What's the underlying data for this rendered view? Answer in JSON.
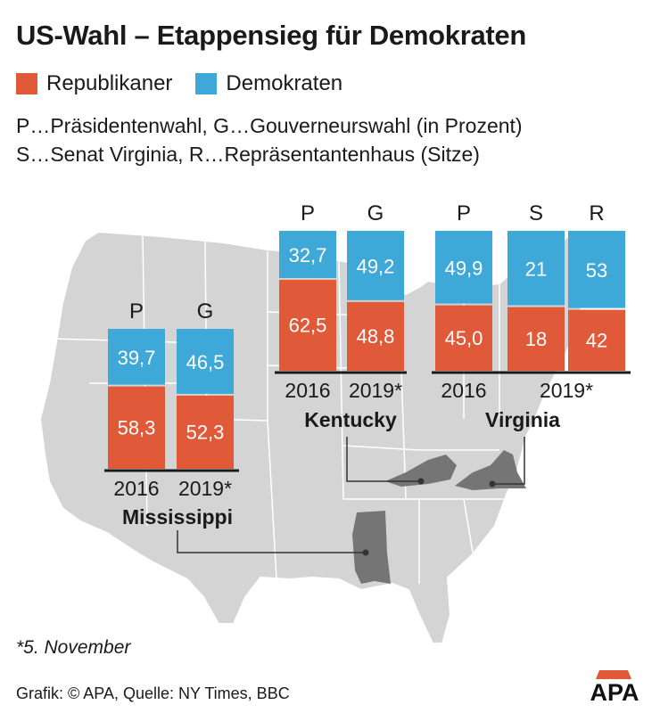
{
  "title": "US-Wahl – Etappensieg für Demokraten",
  "legend": {
    "republicans": {
      "label": "Republikaner",
      "color": "#e05a3a"
    },
    "democrats": {
      "label": "Demokraten",
      "color": "#3ea9d8"
    }
  },
  "notes": {
    "line1": "P…Präsidentenwahl, G…Gouverneurswahl (in Prozent)",
    "line2": "S…Senat Virginia, R…Repräsentantenhaus (Sitze)"
  },
  "footnote": "*5. November",
  "source": "Grafik: © APA, Quelle: NY Times, BBC",
  "logo_text": "APA",
  "chart_data": {
    "type": "bar",
    "stacked": true,
    "normalized": true,
    "groups": [
      {
        "state": "Mississippi",
        "bars": [
          {
            "code": "P",
            "year": "2016",
            "republicans": "58,3",
            "democrats": "39,7",
            "rep_value": 58.3,
            "dem_value": 39.7
          },
          {
            "code": "G",
            "year": "2019*",
            "republicans": "52,3",
            "democrats": "46,5",
            "rep_value": 52.3,
            "dem_value": 46.5
          }
        ]
      },
      {
        "state": "Kentucky",
        "bars": [
          {
            "code": "P",
            "year": "2016",
            "republicans": "62,5",
            "democrats": "32,7",
            "rep_value": 62.5,
            "dem_value": 32.7
          },
          {
            "code": "G",
            "year": "2019*",
            "republicans": "48,8",
            "democrats": "49,2",
            "rep_value": 48.8,
            "dem_value": 49.2
          }
        ]
      },
      {
        "state": "Virginia",
        "bars": [
          {
            "code": "P",
            "year": "2016",
            "republicans": "45,0",
            "democrats": "49,9",
            "rep_value": 45.0,
            "dem_value": 49.9
          },
          {
            "code": "S",
            "year": "2019*",
            "republicans": "18",
            "democrats": "21",
            "rep_value": 18,
            "dem_value": 21
          },
          {
            "code": "R",
            "year": "2019*",
            "republicans": "42",
            "democrats": "53",
            "rep_value": 42,
            "dem_value": 53
          }
        ]
      }
    ]
  }
}
